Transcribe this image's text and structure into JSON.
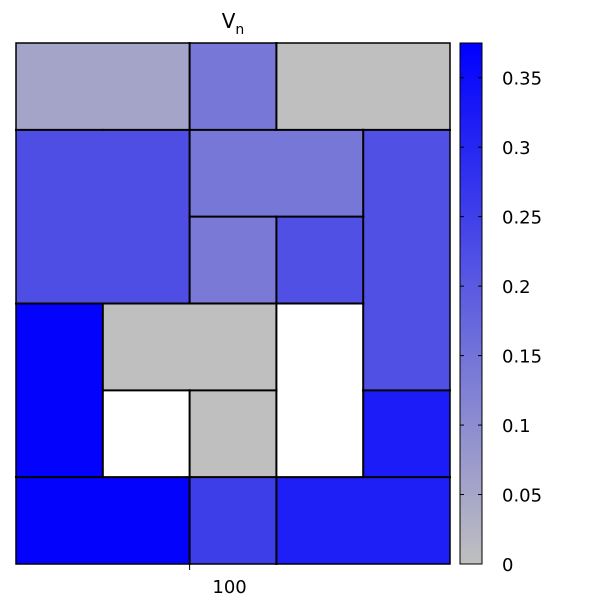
{
  "chart_data": {
    "type": "heatmap",
    "title": "V",
    "title_subscript": "n",
    "x_tick_labels": [
      "100"
    ],
    "grid_columns": 5,
    "grid_rows": 6,
    "colorbar": {
      "min": 0,
      "max": 0.375,
      "ticks": [
        0,
        0.05,
        0.1,
        0.15,
        0.2,
        0.25,
        0.3,
        0.35
      ],
      "tick_labels": [
        "0",
        "0.05",
        "0.1",
        "0.15",
        "0.2",
        "0.25",
        "0.3",
        "0.35"
      ],
      "color_low": "#c0c0c0",
      "color_high": "#0000ff"
    },
    "regions": [
      {
        "col": 0,
        "row": 0,
        "colspan": 2,
        "rowspan": 1,
        "value": 0.06,
        "fill": "#a4a4c9"
      },
      {
        "col": 2,
        "row": 0,
        "colspan": 1,
        "rowspan": 1,
        "value": 0.175,
        "fill": "#7777d8"
      },
      {
        "col": 3,
        "row": 0,
        "colspan": 2,
        "rowspan": 1,
        "value": 0.0,
        "fill": "#bfbfbf"
      },
      {
        "col": 2,
        "row": 1,
        "colspan": 2,
        "rowspan": 1,
        "value": 0.165,
        "fill": "#7777d8"
      },
      {
        "col": 0,
        "row": 1,
        "colspan": 2,
        "rowspan": 2,
        "value": 0.25,
        "fill": "#4e4ee4"
      },
      {
        "col": 4,
        "row": 1,
        "colspan": 1,
        "rowspan": 3,
        "value": 0.25,
        "fill": "#5050e4"
      },
      {
        "col": 3,
        "row": 2,
        "colspan": 1,
        "rowspan": 1,
        "value": 0.25,
        "fill": "#5050e4"
      },
      {
        "col": 2,
        "row": 2,
        "colspan": 1,
        "rowspan": 1,
        "value": 0.15,
        "fill": "#7a7ad6"
      },
      {
        "col": 0,
        "row": 3,
        "colspan": 1,
        "rowspan": 2,
        "value": 0.375,
        "fill": "#0202fd"
      },
      {
        "col": 1,
        "row": 3,
        "colspan": 2,
        "rowspan": 1,
        "value": 0.0,
        "fill": "#bfbfbf"
      },
      {
        "col": 3,
        "row": 3,
        "colspan": 1,
        "rowspan": 2,
        "value": null,
        "fill": "#ffffff"
      },
      {
        "col": 1,
        "row": 4,
        "colspan": 1,
        "rowspan": 1,
        "value": null,
        "fill": "#ffffff"
      },
      {
        "col": 2,
        "row": 4,
        "colspan": 1,
        "rowspan": 1,
        "value": 0.0,
        "fill": "#bfbfbf"
      },
      {
        "col": 4,
        "row": 4,
        "colspan": 1,
        "rowspan": 1,
        "value": 0.345,
        "fill": "#1c1cf8"
      },
      {
        "col": 0,
        "row": 5,
        "colspan": 2,
        "rowspan": 1,
        "value": 0.375,
        "fill": "#0202fd"
      },
      {
        "col": 2,
        "row": 5,
        "colspan": 1,
        "rowspan": 1,
        "value": 0.285,
        "fill": "#3e3ee9"
      },
      {
        "col": 3,
        "row": 5,
        "colspan": 2,
        "rowspan": 1,
        "value": 0.345,
        "fill": "#1e1ef6"
      }
    ]
  }
}
